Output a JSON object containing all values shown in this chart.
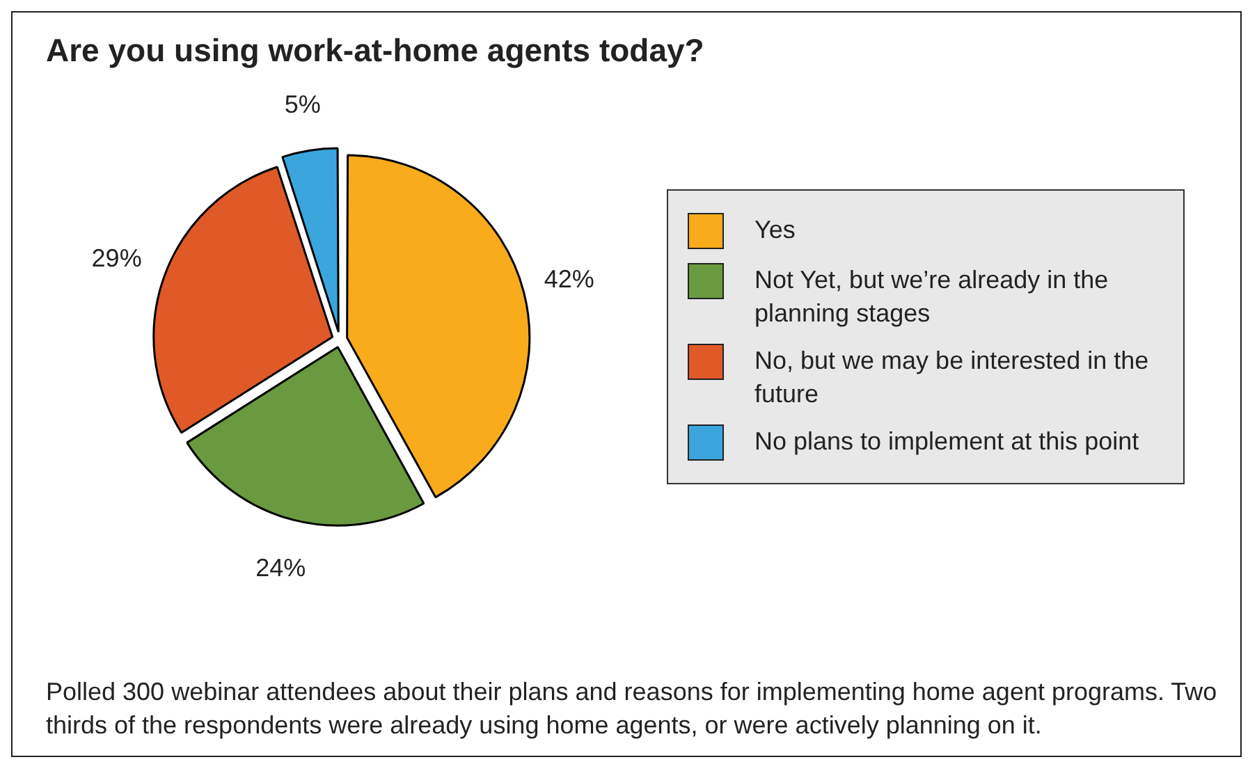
{
  "chart_data": {
    "type": "pie",
    "title": "Are you using work-at-home agents today?",
    "categories": [
      "Yes",
      "Not Yet, but we’re already in the planning stages",
      "No, but we may be interested in the future",
      "No plans to implement at this point"
    ],
    "values": [
      42,
      24,
      29,
      5
    ],
    "colors": [
      "#f9ab1c",
      "#6a9a3f",
      "#e05a27",
      "#3aa6dd"
    ],
    "value_labels": [
      "42%",
      "24%",
      "29%",
      "5%"
    ],
    "legend": "right",
    "annotations": [
      "Polled 300 webinar attendees about their plans and reasons for implementing home agent programs. Two thirds of the respondents were already using home agents, or were actively planning on it."
    ]
  }
}
